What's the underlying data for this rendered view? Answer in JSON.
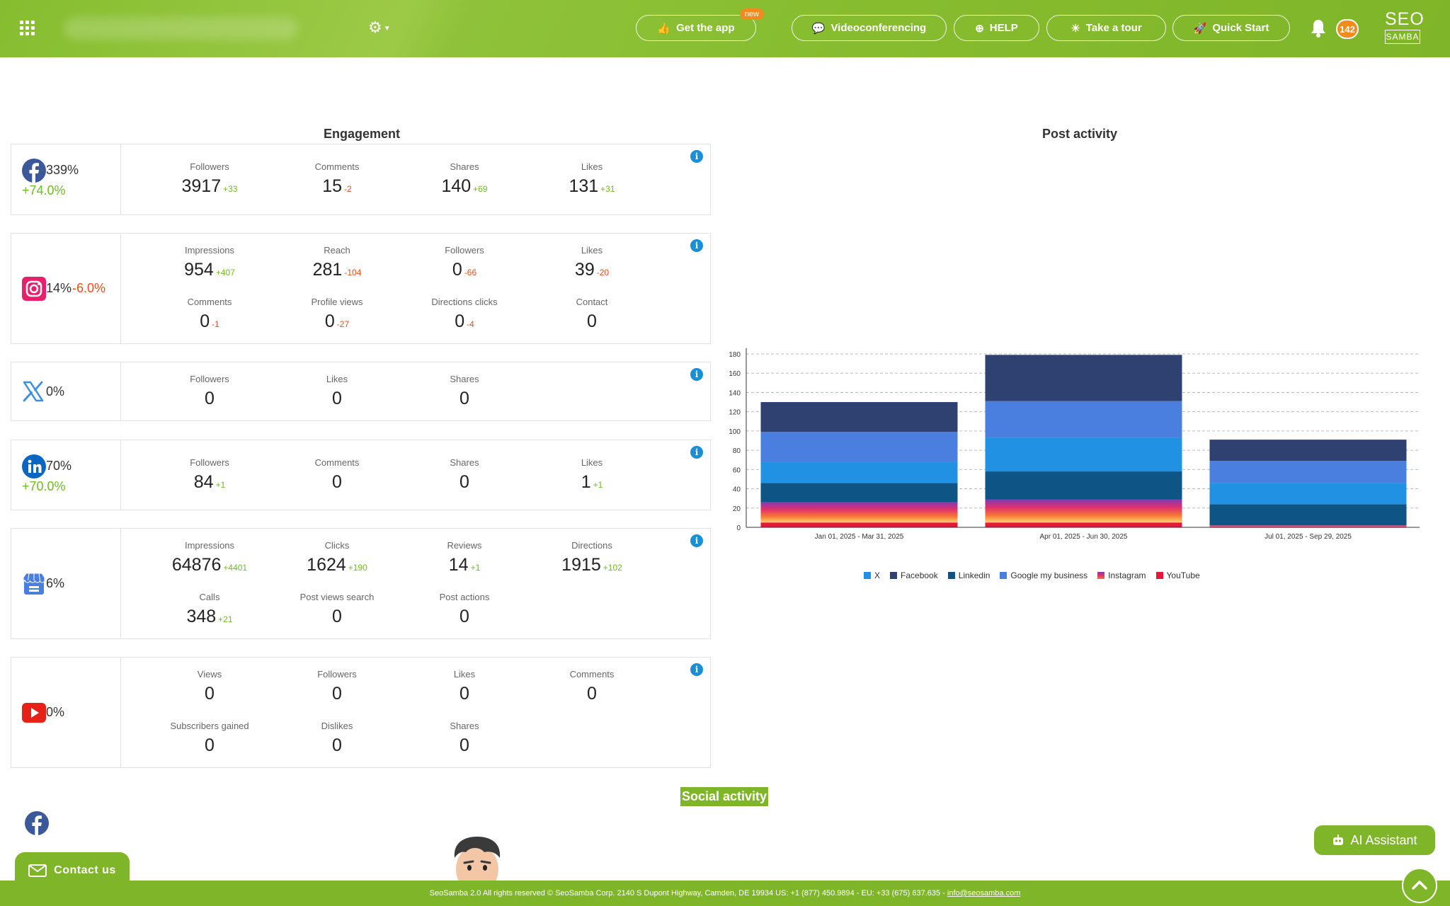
{
  "header": {
    "get_app": "Get the app",
    "new_badge": "new",
    "videoconferencing": "Videoconferencing",
    "help": "HELP",
    "take_tour": "Take a tour",
    "quick_start": "Quick Start",
    "notifications": "142",
    "logo_top": "SEO",
    "logo_bottom": "SAMBA",
    "colors": {
      "accent": "#7fb528",
      "badge": "#f08c1e"
    }
  },
  "engagement": {
    "title": "Engagement",
    "facebook": {
      "pct": "339%",
      "delta": "+74.0%",
      "metrics": [
        {
          "label": "Followers",
          "value": "3917",
          "change": "+33"
        },
        {
          "label": "Comments",
          "value": "15",
          "change": "-2"
        },
        {
          "label": "Shares",
          "value": "140",
          "change": "+69"
        },
        {
          "label": "Likes",
          "value": "131",
          "change": "+31"
        }
      ]
    },
    "instagram": {
      "pct": "14%",
      "delta": "-6.0%",
      "metrics": [
        {
          "label": "Impressions",
          "value": "954",
          "change": "+407"
        },
        {
          "label": "Reach",
          "value": "281",
          "change": "-104"
        },
        {
          "label": "Followers",
          "value": "0",
          "change": "-66"
        },
        {
          "label": "Likes",
          "value": "39",
          "change": "-20"
        },
        {
          "label": "Comments",
          "value": "0",
          "change": "-1"
        },
        {
          "label": "Profile views",
          "value": "0",
          "change": "-27"
        },
        {
          "label": "Directions clicks",
          "value": "0",
          "change": "-4"
        },
        {
          "label": "Contact",
          "value": "0",
          "change": ""
        }
      ]
    },
    "x": {
      "pct": "0%",
      "metrics": [
        {
          "label": "Followers",
          "value": "0"
        },
        {
          "label": "Likes",
          "value": "0"
        },
        {
          "label": "Shares",
          "value": "0"
        }
      ]
    },
    "linkedin": {
      "pct": "70%",
      "delta": "+70.0%",
      "metrics": [
        {
          "label": "Followers",
          "value": "84",
          "change": "+1"
        },
        {
          "label": "Comments",
          "value": "0",
          "change": ""
        },
        {
          "label": "Shares",
          "value": "0",
          "change": ""
        },
        {
          "label": "Likes",
          "value": "1",
          "change": "+1"
        }
      ]
    },
    "gmb": {
      "pct": "6%",
      "metrics": [
        {
          "label": "Impressions",
          "value": "64876",
          "change": "+4401"
        },
        {
          "label": "Clicks",
          "value": "1624",
          "change": "+190"
        },
        {
          "label": "Reviews",
          "value": "14",
          "change": "+1"
        },
        {
          "label": "Directions",
          "value": "1915",
          "change": "+102"
        },
        {
          "label": "Calls",
          "value": "348",
          "change": "+21"
        },
        {
          "label": "Post views search",
          "value": "0",
          "change": ""
        },
        {
          "label": "Post actions",
          "value": "0",
          "change": ""
        }
      ]
    },
    "youtube": {
      "pct": "0%",
      "metrics": [
        {
          "label": "Views",
          "value": "0"
        },
        {
          "label": "Followers",
          "value": "0"
        },
        {
          "label": "Likes",
          "value": "0"
        },
        {
          "label": "Comments",
          "value": "0"
        },
        {
          "label": "Subscribers gained",
          "value": "0"
        },
        {
          "label": "Dislikes",
          "value": "0"
        },
        {
          "label": "Shares",
          "value": "0"
        }
      ]
    }
  },
  "post_activity": {
    "title": "Post activity"
  },
  "chart_data": {
    "type": "bar",
    "stacked": true,
    "title": "Post activity",
    "categories": [
      "Jan 01, 2025 - Mar 31, 2025",
      "Apr 01, 2025 - Jun 30, 2025",
      "Jul 01, 2025 - Sep 29, 2025"
    ],
    "ylim": [
      0,
      180
    ],
    "yticks": [
      0,
      20,
      40,
      60,
      80,
      100,
      120,
      140,
      160,
      180
    ],
    "grid": true,
    "legend_position": "bottom",
    "series": [
      {
        "name": "YouTube",
        "color": "#e8163a",
        "values": [
          5,
          5,
          1
        ]
      },
      {
        "name": "Instagram",
        "color": "#f77737",
        "values": [
          21,
          24,
          1
        ]
      },
      {
        "name": "Linkedin",
        "color": "#0e5484",
        "values": [
          20,
          29,
          22
        ]
      },
      {
        "name": "X",
        "color": "#2192e3",
        "values": [
          22,
          35,
          22
        ]
      },
      {
        "name": "Google my business",
        "color": "#4a7fe0",
        "values": [
          31,
          38,
          23
        ]
      },
      {
        "name": "Facebook",
        "color": "#2e4170",
        "values": [
          31,
          48,
          22
        ]
      }
    ],
    "legend_order": [
      "X",
      "Facebook",
      "Linkedin",
      "Google my business",
      "Instagram",
      "YouTube"
    ]
  },
  "social_activity": "Social activity",
  "footer": {
    "text": "SeoSamba 2.0  All rights reserved © SeoSamba Corp. 2140 S Dupont Highway, Camden, DE 19934 US: +1 (877) 450.9894 - EU: +33 (675) 637.635 - ",
    "email": "info@seosamba.com"
  },
  "contact_us": "Contact us",
  "ai_assistant": "AI Assistant"
}
